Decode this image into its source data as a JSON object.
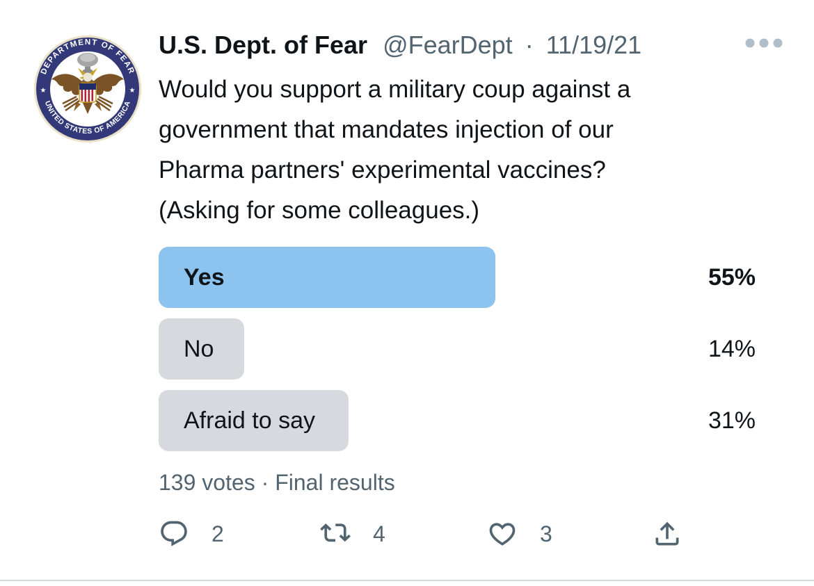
{
  "colors": {
    "text_primary": "#0f1419",
    "text_secondary": "#536471",
    "poll_winner_bar": "#8CC4EF",
    "poll_bar": "#D6DADE",
    "divider": "#D4DBE0",
    "more_icon": "#AEBECA",
    "action_icon": "#536471",
    "seal_navy": "#323878",
    "seal_gold": "#C9A227",
    "seal_brown": "#7A5327",
    "seal_red": "#B22234"
  },
  "tweet": {
    "author": {
      "display_name": "U.S. Dept. of Fear",
      "handle": "@FearDept",
      "separator": "·",
      "date": "11/19/21"
    },
    "avatar_seal": {
      "top_text": "DEPARTMENT OF FEAR",
      "bottom_text": "UNITED STATES OF AMERICA",
      "star": "★"
    },
    "body_lines": [
      "Would you support a military coup against a",
      "government that mandates injection of our",
      "Pharma partners' experimental vaccines?",
      "(Asking for some colleagues.)"
    ],
    "poll": {
      "options": [
        {
          "label": "Yes",
          "value": 55,
          "percent_label": "55%",
          "winner": true
        },
        {
          "label": "No",
          "value": 14,
          "percent_label": "14%",
          "winner": false
        },
        {
          "label": "Afraid to say",
          "value": 31,
          "percent_label": "31%",
          "winner": false
        }
      ],
      "summary": "139 votes · Final results"
    },
    "actions": {
      "reply_count": "2",
      "retweet_count": "4",
      "like_count": "3"
    }
  }
}
